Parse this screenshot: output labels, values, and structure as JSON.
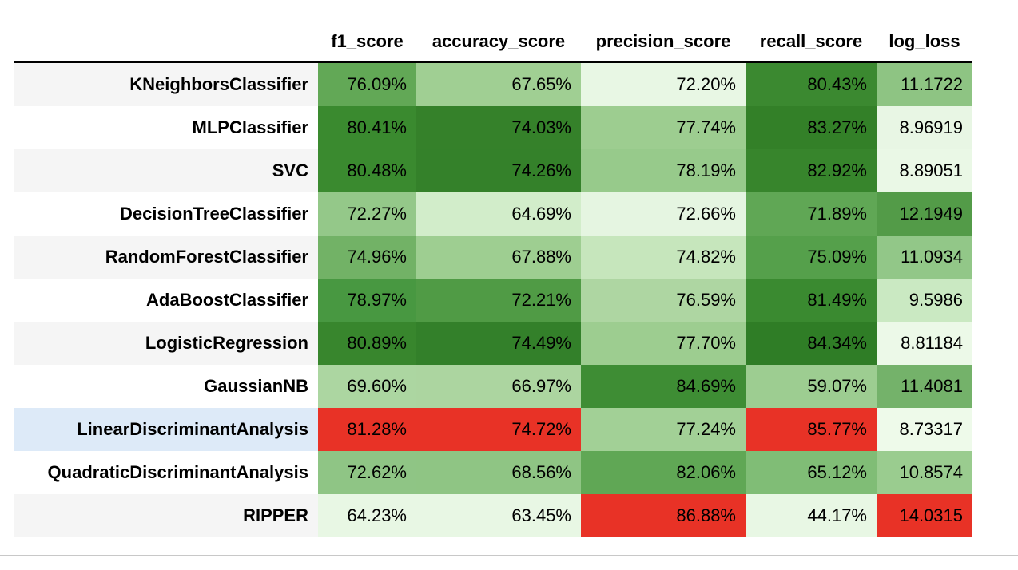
{
  "table": {
    "columns": [
      "f1_score",
      "accuracy_score",
      "precision_score",
      "recall_score",
      "log_loss"
    ],
    "rows": [
      {
        "name": "KNeighborsClassifier",
        "values": [
          "76.09%",
          "67.65%",
          "72.20%",
          "80.43%",
          "11.1722"
        ],
        "colors": [
          "#62a856",
          "#a0cf93",
          "#e8f7e4",
          "#3b8930",
          "#8ec483"
        ]
      },
      {
        "name": "MLPClassifier",
        "values": [
          "80.41%",
          "74.03%",
          "77.74%",
          "83.27%",
          "8.96919"
        ],
        "colors": [
          "#3a8a2f",
          "#35812a",
          "#9dcd90",
          "#338028",
          "#e8f6e4"
        ]
      },
      {
        "name": "SVC",
        "values": [
          "80.48%",
          "74.26%",
          "78.19%",
          "82.92%",
          "8.89051"
        ],
        "colors": [
          "#3a8a2f",
          "#34812a",
          "#97ca8b",
          "#37852c",
          "#eaf8e6"
        ]
      },
      {
        "name": "DecisionTreeClassifier",
        "values": [
          "72.27%",
          "64.69%",
          "72.66%",
          "71.89%",
          "12.1949"
        ],
        "colors": [
          "#94c889",
          "#d2edca",
          "#e5f5e1",
          "#60a755",
          "#539b48"
        ]
      },
      {
        "name": "RandomForestClassifier",
        "values": [
          "74.96%",
          "67.88%",
          "74.82%",
          "75.09%",
          "11.0934"
        ],
        "colors": [
          "#72b266",
          "#9ece91",
          "#c6e6bc",
          "#55a04b",
          "#92c788"
        ]
      },
      {
        "name": "AdaBoostClassifier",
        "values": [
          "78.97%",
          "72.21%",
          "76.59%",
          "81.49%",
          "9.5986"
        ],
        "colors": [
          "#489841",
          "#509b45",
          "#aed6a2",
          "#3a8a30",
          "#cae9c2"
        ]
      },
      {
        "name": "LogisticRegression",
        "values": [
          "80.89%",
          "74.49%",
          "77.70%",
          "84.34%",
          "8.81184"
        ],
        "colors": [
          "#38862d",
          "#33802a",
          "#9dcd90",
          "#2f7d26",
          "#ecf9e8"
        ]
      },
      {
        "name": "GaussianNB",
        "values": [
          "69.60%",
          "66.97%",
          "84.69%",
          "59.07%",
          "11.4081"
        ],
        "colors": [
          "#acd6a1",
          "#acd5a0",
          "#3e8d34",
          "#9dcd91",
          "#74b26a"
        ]
      },
      {
        "name": "LinearDiscriminantAnalysis",
        "values": [
          "81.28%",
          "74.72%",
          "77.24%",
          "85.77%",
          "8.73317"
        ],
        "colors": [
          "#e83226",
          "#e83226",
          "#a2d096",
          "#e83226",
          "#eefaea"
        ],
        "highlight": true
      },
      {
        "name": "QuadraticDiscriminantAnalysis",
        "values": [
          "72.62%",
          "68.56%",
          "82.06%",
          "65.12%",
          "10.8574"
        ],
        "colors": [
          "#8fc585",
          "#8fc584",
          "#60a755",
          "#80bd76",
          "#9acc8f"
        ]
      },
      {
        "name": "RIPPER",
        "values": [
          "64.23%",
          "63.45%",
          "86.88%",
          "44.17%",
          "14.0315"
        ],
        "colors": [
          "#e8f7e4",
          "#e8f7e4",
          "#e83226",
          "#e8f7e4",
          "#e83226"
        ]
      }
    ]
  }
}
